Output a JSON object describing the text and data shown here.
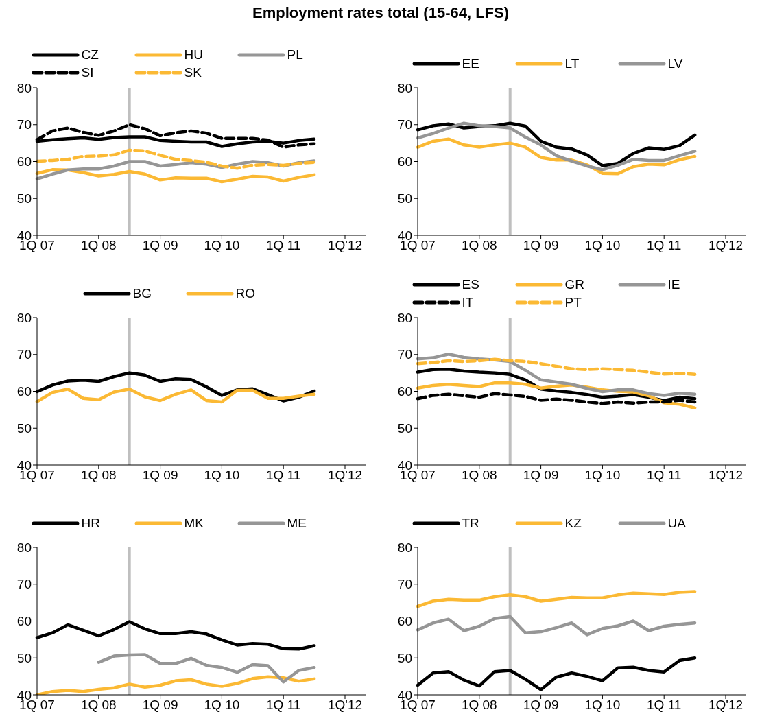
{
  "chart_data": [
    {
      "type": "line",
      "title": "Employment rates total (15-64, LFS)",
      "legend": "top",
      "categories": [
        "1Q 07",
        null,
        null,
        null,
        "1Q 08",
        null,
        null,
        null,
        "1Q 09",
        null,
        null,
        null,
        "1Q 10",
        null,
        null,
        null,
        "1Q 11",
        null,
        null,
        null,
        "1Q'12"
      ],
      "ylim": [
        40,
        80
      ],
      "yticks": [
        40,
        50,
        60,
        70,
        80
      ],
      "series": [
        {
          "name": "CZ",
          "color": "#000000",
          "values": [
            65.5,
            65.9,
            66.2,
            66.4,
            66.0,
            66.5,
            66.7,
            66.7,
            65.7,
            65.5,
            65.3,
            65.3,
            64.1,
            64.8,
            65.3,
            65.5,
            65.0,
            65.7,
            66.1,
            null,
            null
          ]
        },
        {
          "name": "HU",
          "color": "#fbb934",
          "values": [
            56.8,
            57.8,
            57.7,
            57.0,
            56.1,
            56.5,
            57.3,
            56.6,
            55.0,
            55.6,
            55.5,
            55.5,
            54.5,
            55.2,
            56.0,
            55.8,
            54.7,
            55.7,
            56.4,
            null,
            null
          ]
        },
        {
          "name": "PL",
          "color": "#969696",
          "values": [
            55.3,
            56.6,
            57.7,
            58.0,
            58.0,
            58.8,
            60.0,
            60.0,
            58.8,
            59.2,
            59.7,
            59.3,
            58.4,
            59.3,
            60.0,
            59.7,
            58.8,
            59.7,
            60.2,
            null,
            null
          ]
        },
        {
          "name": "SI",
          "color": "#000000",
          "line_style": "dashed",
          "values": [
            65.9,
            68.3,
            69.1,
            67.9,
            67.1,
            68.3,
            70.0,
            68.9,
            67.0,
            67.8,
            68.3,
            67.7,
            66.3,
            66.3,
            66.3,
            65.8,
            63.9,
            64.5,
            64.8,
            null,
            null
          ]
        },
        {
          "name": "SK",
          "color": "#fbb934",
          "line_style": "dashed",
          "values": [
            60.1,
            60.3,
            60.6,
            61.4,
            61.5,
            61.8,
            63.1,
            62.9,
            61.7,
            60.6,
            60.3,
            59.8,
            58.8,
            58.2,
            59.0,
            59.2,
            59.0,
            59.5,
            59.8,
            null,
            null
          ]
        }
      ]
    },
    {
      "type": "line",
      "legend": "top",
      "categories": [
        "1Q 07",
        null,
        null,
        null,
        "1Q 08",
        null,
        null,
        null,
        "1Q 09",
        null,
        null,
        null,
        "1Q 10",
        null,
        null,
        null,
        "1Q 11",
        null,
        null,
        null,
        "1Q'12"
      ],
      "ylim": [
        40,
        80
      ],
      "yticks": [
        40,
        50,
        60,
        70,
        80
      ],
      "series": [
        {
          "name": "EE",
          "color": "#000000",
          "values": [
            68.6,
            69.7,
            70.2,
            69.1,
            69.5,
            69.7,
            70.4,
            69.6,
            65.5,
            63.9,
            63.4,
            61.8,
            58.9,
            59.5,
            62.2,
            63.7,
            63.3,
            64.3,
            67.2,
            null,
            null
          ]
        },
        {
          "name": "LT",
          "color": "#fbb934",
          "values": [
            63.9,
            65.5,
            66.1,
            64.5,
            63.9,
            64.5,
            65.0,
            63.9,
            61.1,
            60.4,
            60.4,
            59.1,
            56.8,
            56.7,
            58.6,
            59.3,
            59.1,
            60.5,
            61.4,
            null,
            null
          ]
        },
        {
          "name": "LV",
          "color": "#969696",
          "values": [
            66.4,
            67.6,
            69.1,
            70.4,
            69.7,
            69.5,
            69.1,
            66.6,
            64.5,
            61.6,
            60.1,
            58.8,
            57.8,
            59.0,
            60.6,
            60.3,
            60.3,
            61.6,
            62.8,
            null,
            null
          ]
        }
      ]
    },
    {
      "type": "line",
      "legend": "top",
      "categories": [
        "1Q 07",
        null,
        null,
        null,
        "1Q 08",
        null,
        null,
        null,
        "1Q 09",
        null,
        null,
        null,
        "1Q 10",
        null,
        null,
        null,
        "1Q 11",
        null,
        null,
        null,
        "1Q'12"
      ],
      "ylim": [
        40,
        80
      ],
      "yticks": [
        40,
        50,
        60,
        70,
        80
      ],
      "series": [
        {
          "name": "BG",
          "color": "#000000",
          "values": [
            59.9,
            61.7,
            62.8,
            63.0,
            62.7,
            64.0,
            65.0,
            64.4,
            62.7,
            63.4,
            63.2,
            61.2,
            58.9,
            60.4,
            60.7,
            59.1,
            57.4,
            58.4,
            60.1,
            null,
            null
          ]
        },
        {
          "name": "RO",
          "color": "#fbb934",
          "values": [
            57.2,
            59.7,
            60.6,
            58.1,
            57.7,
            59.8,
            60.6,
            58.5,
            57.5,
            59.2,
            60.4,
            57.5,
            57.1,
            60.3,
            60.3,
            58.1,
            58.1,
            58.7,
            59.2,
            null,
            null
          ]
        }
      ]
    },
    {
      "type": "line",
      "legend": "top",
      "categories": [
        "1Q 07",
        null,
        null,
        null,
        "1Q 08",
        null,
        null,
        null,
        "1Q 09",
        null,
        null,
        null,
        "1Q 10",
        null,
        null,
        null,
        "1Q 11",
        null,
        null,
        null,
        "1Q'12"
      ],
      "ylim": [
        40,
        80
      ],
      "yticks": [
        40,
        50,
        60,
        70,
        80
      ],
      "series": [
        {
          "name": "ES",
          "color": "#000000",
          "values": [
            65.2,
            65.9,
            66.0,
            65.5,
            65.2,
            65.0,
            64.6,
            63.1,
            60.6,
            60.1,
            59.7,
            59.1,
            58.4,
            58.7,
            59.1,
            58.4,
            57.5,
            58.4,
            58.0,
            null,
            null
          ]
        },
        {
          "name": "GR",
          "color": "#fbb934",
          "values": [
            60.9,
            61.6,
            61.9,
            61.6,
            61.3,
            62.3,
            62.3,
            61.9,
            60.9,
            61.4,
            61.7,
            61.1,
            60.4,
            60.0,
            59.8,
            58.8,
            56.9,
            56.5,
            55.5,
            null,
            null
          ]
        },
        {
          "name": "IE",
          "color": "#969696",
          "values": [
            68.8,
            69.1,
            70.1,
            69.2,
            68.8,
            68.5,
            68.1,
            65.7,
            63.1,
            62.5,
            61.9,
            60.8,
            59.9,
            60.4,
            60.4,
            59.4,
            58.9,
            59.5,
            59.2,
            null,
            null
          ]
        },
        {
          "name": "IT",
          "color": "#000000",
          "line_style": "dashed",
          "values": [
            58.0,
            58.9,
            59.2,
            58.8,
            58.4,
            59.4,
            59.0,
            58.6,
            57.6,
            57.9,
            57.6,
            57.1,
            56.7,
            57.1,
            56.8,
            57.1,
            57.1,
            57.6,
            57.1,
            null,
            null
          ]
        },
        {
          "name": "PT",
          "color": "#fbb934",
          "line_style": "dashed",
          "values": [
            67.5,
            67.8,
            68.3,
            68.1,
            68.3,
            68.7,
            68.3,
            68.1,
            67.5,
            66.8,
            66.1,
            65.9,
            66.1,
            65.9,
            65.7,
            65.2,
            64.7,
            64.9,
            64.6,
            null,
            null
          ]
        }
      ]
    },
    {
      "type": "line",
      "legend": "top",
      "categories": [
        "1Q 07",
        null,
        null,
        null,
        "1Q 08",
        null,
        null,
        null,
        "1Q 09",
        null,
        null,
        null,
        "1Q 10",
        null,
        null,
        null,
        "1Q 11",
        null,
        null,
        null,
        "1Q'12"
      ],
      "ylim": [
        40,
        80
      ],
      "yticks": [
        40,
        50,
        60,
        70,
        80
      ],
      "series": [
        {
          "name": "HR",
          "color": "#000000",
          "values": [
            55.5,
            56.8,
            59.0,
            57.5,
            56.0,
            57.7,
            59.8,
            57.9,
            56.6,
            56.6,
            57.1,
            56.5,
            54.9,
            53.5,
            53.9,
            53.7,
            52.5,
            52.4,
            53.3,
            null,
            null
          ]
        },
        {
          "name": "MK",
          "color": "#fbb934",
          "values": [
            40.0,
            40.9,
            41.2,
            40.9,
            41.5,
            41.9,
            42.9,
            42.1,
            42.6,
            43.8,
            44.1,
            42.9,
            42.3,
            43.1,
            44.4,
            44.9,
            44.6,
            43.7,
            44.3,
            null,
            null
          ]
        },
        {
          "name": "ME",
          "color": "#969696",
          "values": [
            null,
            null,
            null,
            null,
            48.8,
            50.5,
            50.8,
            50.9,
            48.5,
            48.5,
            49.9,
            48.0,
            47.4,
            46.1,
            48.2,
            47.9,
            43.5,
            46.6,
            47.4,
            null,
            null
          ]
        }
      ]
    },
    {
      "type": "line",
      "legend": "top",
      "categories": [
        "1Q 07",
        null,
        null,
        null,
        "1Q 08",
        null,
        null,
        null,
        "1Q 09",
        null,
        null,
        null,
        "1Q 10",
        null,
        null,
        null,
        "1Q 11",
        null,
        null,
        null,
        "1Q'12"
      ],
      "ylim": [
        40,
        80
      ],
      "yticks": [
        40,
        50,
        60,
        70,
        80
      ],
      "series": [
        {
          "name": "TR",
          "color": "#000000",
          "values": [
            42.6,
            45.9,
            46.3,
            44.0,
            42.4,
            46.3,
            46.6,
            44.2,
            41.4,
            44.8,
            45.9,
            45.0,
            43.8,
            47.3,
            47.5,
            46.6,
            46.2,
            49.3,
            50.0,
            null,
            null
          ]
        },
        {
          "name": "KZ",
          "color": "#fbb934",
          "values": [
            64.0,
            65.4,
            65.9,
            65.7,
            65.7,
            66.6,
            67.1,
            66.6,
            65.4,
            65.9,
            66.4,
            66.3,
            66.3,
            67.1,
            67.6,
            67.4,
            67.2,
            67.8,
            68.0,
            null,
            null
          ]
        },
        {
          "name": "UA",
          "color": "#969696",
          "values": [
            57.6,
            59.5,
            60.5,
            57.4,
            58.6,
            60.7,
            61.2,
            56.8,
            57.1,
            58.2,
            59.5,
            56.3,
            58.0,
            58.7,
            60.0,
            57.4,
            58.6,
            59.1,
            59.5,
            null,
            null
          ]
        }
      ]
    }
  ]
}
